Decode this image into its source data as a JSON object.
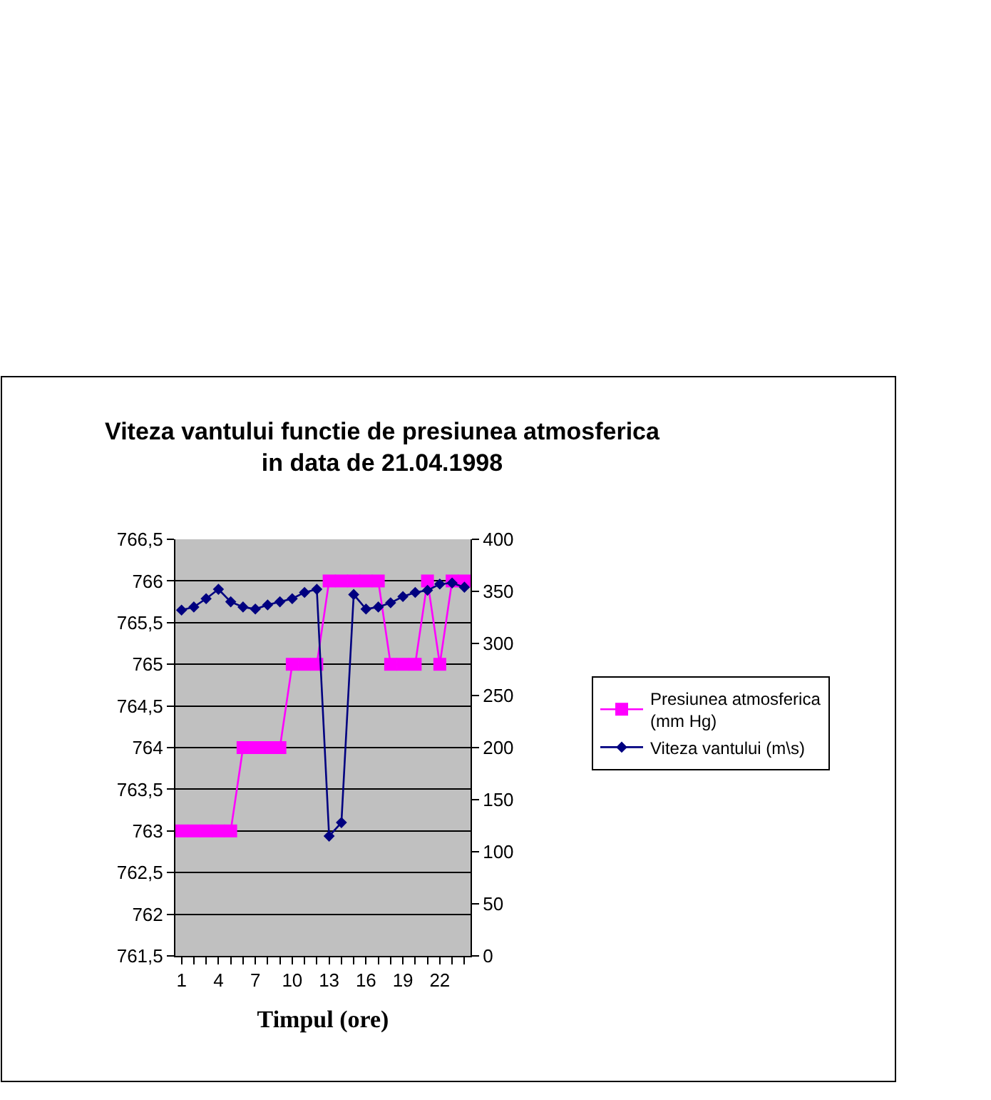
{
  "chart_data": {
    "type": "line",
    "title": "Viteza vantului functie de presiunea atmosferica\nin data de 21.04.1998",
    "xlabel": "Timpul (ore)",
    "categories": [
      "1",
      null,
      null,
      "4",
      null,
      null,
      "7",
      null,
      null,
      "10",
      null,
      null,
      "13",
      null,
      null,
      "16",
      null,
      null,
      "19",
      null,
      null,
      "22",
      null,
      null
    ],
    "series": [
      {
        "name": "Presiunea atmosferica (mm Hg)",
        "color": "#ff00ff",
        "marker": "square",
        "values": [
          763,
          763,
          763,
          763,
          763,
          764,
          764,
          764,
          764,
          765,
          765,
          765,
          766,
          766,
          766,
          766,
          766,
          765,
          765,
          765,
          766,
          765,
          766,
          766
        ]
      },
      {
        "name": "Viteza vantului (m\\s)",
        "color": "#000080",
        "marker": "diamond",
        "axis": "y2",
        "values": [
          332,
          335,
          343,
          352,
          340,
          335,
          333,
          337,
          340,
          343,
          349,
          352,
          115,
          128,
          347,
          333,
          335,
          339,
          345,
          349,
          351,
          357,
          358,
          354
        ]
      }
    ],
    "ylim": [
      761.5,
      766.5
    ],
    "yticks": [
      {
        "value": 761.5,
        "label": "761,5"
      },
      762,
      {
        "value": 762.5,
        "label": "762,5"
      },
      763,
      {
        "value": 763.5,
        "label": "763,5"
      },
      764,
      {
        "value": 764.5,
        "label": "764,5"
      },
      765,
      {
        "value": 765.5,
        "label": "765,5"
      },
      766,
      {
        "value": 766.5,
        "label": "766,5"
      }
    ],
    "y2lim": [
      0,
      400
    ],
    "y2ticks": [
      0,
      50,
      100,
      150,
      200,
      250,
      300,
      350,
      400
    ],
    "grid": "y",
    "legend": "right"
  }
}
